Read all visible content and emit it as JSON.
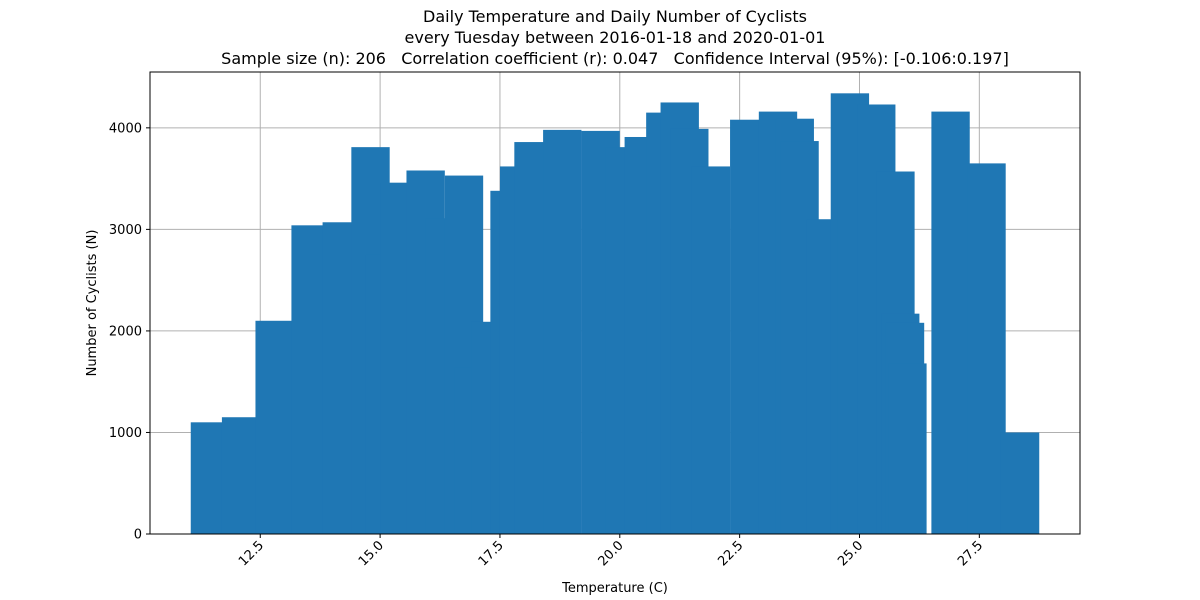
{
  "chart_data": {
    "type": "bar",
    "title": "Daily Temperature and Daily Number of Cyclists",
    "subtitle": "every Tuesday between 2016-01-18 and 2020-01-01",
    "stats_line": "Sample size (n): 206   Correlation coefficient (r): 0.047   Confidence Interval (95%): [-0.106:0.197]",
    "xlabel": "Temperature (C)",
    "ylabel": "Number of Cyclists (N)",
    "xlim": [
      10.2,
      29.6
    ],
    "ylim": [
      0,
      4550
    ],
    "xticks": [
      12.5,
      15.0,
      17.5,
      20.0,
      22.5,
      25.0,
      27.5
    ],
    "xtick_labels": [
      "12.5",
      "15.0",
      "17.5",
      "20.0",
      "22.5",
      "25.0",
      "27.5"
    ],
    "yticks": [
      0,
      1000,
      2000,
      3000,
      4000
    ],
    "ytick_labels": [
      "0",
      "1000",
      "2000",
      "3000",
      "4000"
    ],
    "grid": true,
    "bar_color": "#1f77b4",
    "bar_width": 0.8,
    "points": [
      {
        "x": 11.45,
        "y": 1100
      },
      {
        "x": 12.1,
        "y": 1150
      },
      {
        "x": 12.8,
        "y": 2100
      },
      {
        "x": 13.55,
        "y": 3040
      },
      {
        "x": 14.2,
        "y": 3070
      },
      {
        "x": 14.8,
        "y": 3810
      },
      {
        "x": 15.1,
        "y": 2750
      },
      {
        "x": 15.4,
        "y": 3460
      },
      {
        "x": 15.95,
        "y": 3580
      },
      {
        "x": 16.35,
        "y": 3110
      },
      {
        "x": 16.75,
        "y": 3530
      },
      {
        "x": 16.95,
        "y": 1640
      },
      {
        "x": 17.3,
        "y": 2090
      },
      {
        "x": 17.7,
        "y": 3380
      },
      {
        "x": 17.9,
        "y": 3620
      },
      {
        "x": 18.2,
        "y": 3860
      },
      {
        "x": 18.8,
        "y": 3980
      },
      {
        "x": 19.6,
        "y": 3970
      },
      {
        "x": 20.1,
        "y": 3810
      },
      {
        "x": 20.5,
        "y": 3910
      },
      {
        "x": 20.95,
        "y": 4150
      },
      {
        "x": 21.25,
        "y": 4250
      },
      {
        "x": 21.45,
        "y": 3990
      },
      {
        "x": 21.9,
        "y": 3620
      },
      {
        "x": 22.7,
        "y": 4080
      },
      {
        "x": 23.3,
        "y": 4160
      },
      {
        "x": 23.65,
        "y": 4090
      },
      {
        "x": 23.75,
        "y": 3870
      },
      {
        "x": 24.3,
        "y": 3100
      },
      {
        "x": 24.8,
        "y": 4340
      },
      {
        "x": 24.95,
        "y": 3910
      },
      {
        "x": 25.35,
        "y": 4230
      },
      {
        "x": 25.75,
        "y": 3570
      },
      {
        "x": 25.85,
        "y": 2170
      },
      {
        "x": 25.95,
        "y": 2080
      },
      {
        "x": 26.0,
        "y": 1680
      },
      {
        "x": 26.9,
        "y": 4160
      },
      {
        "x": 27.65,
        "y": 3650
      },
      {
        "x": 28.35,
        "y": 1000
      }
    ]
  }
}
